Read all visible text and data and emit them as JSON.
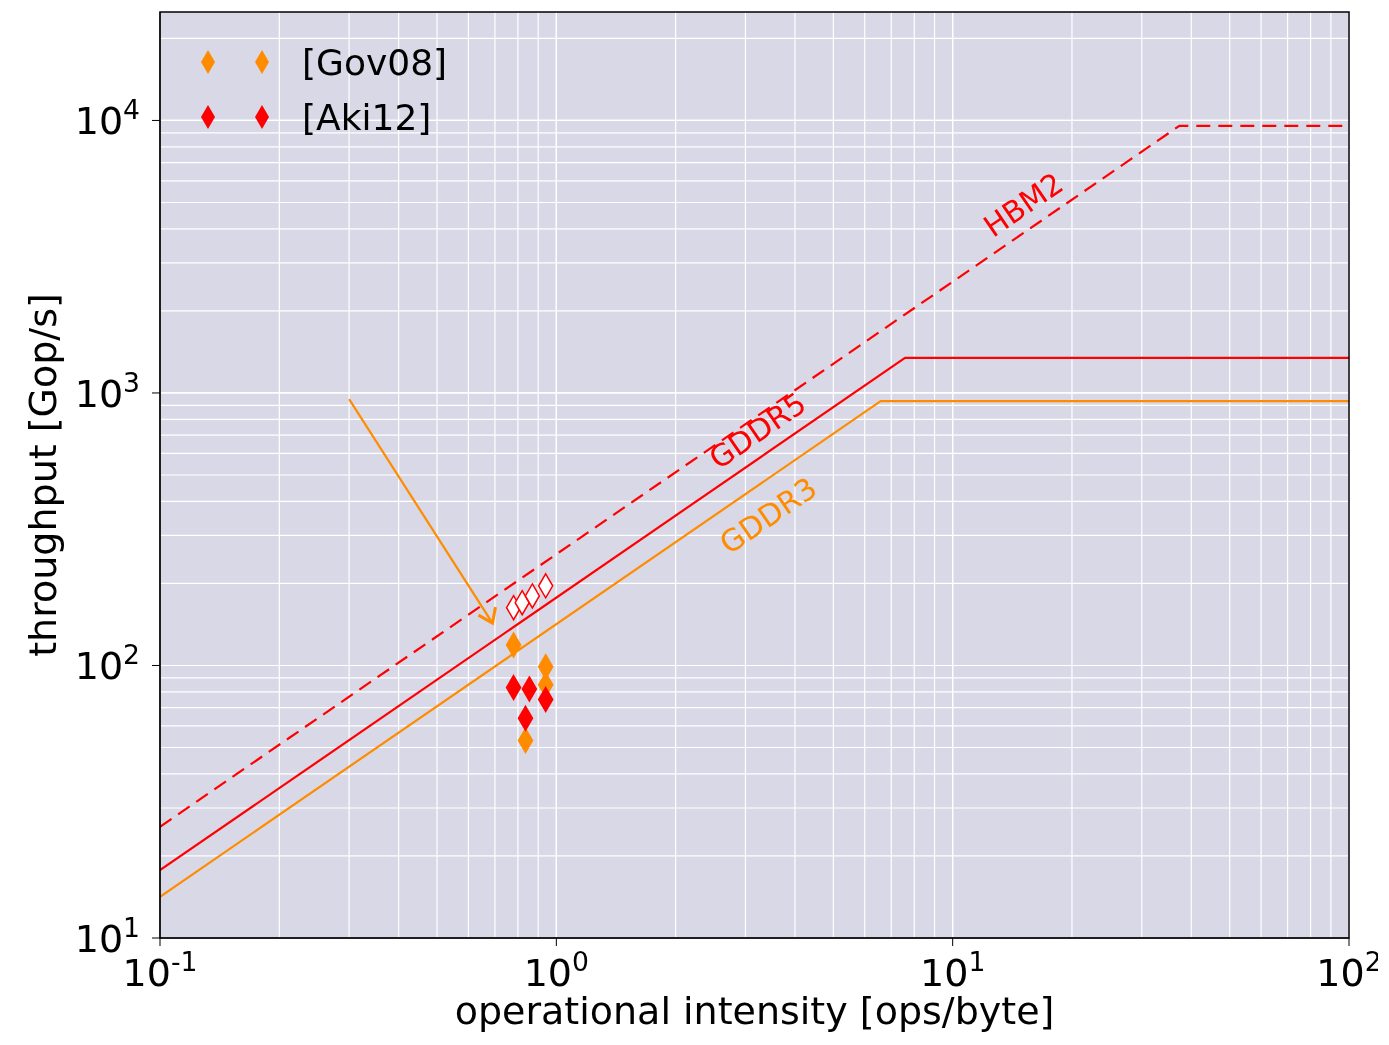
{
  "chart_data": {
    "type": "scatter",
    "xlabel": "operational intensity [ops/byte]",
    "ylabel": "throughput [Gop/s]",
    "log": "xy",
    "xlim": [
      0.1,
      100
    ],
    "ylim": [
      10,
      25000
    ],
    "xticks": [
      {
        "value": 0.1,
        "label": "10$^{-1}$"
      },
      {
        "value": 1,
        "label": "10$^{0}$"
      },
      {
        "value": 10,
        "label": "10$^{1}$"
      },
      {
        "value": 100,
        "label": "10$^{2}$"
      }
    ],
    "yticks": [
      {
        "value": 10,
        "label": "10$^{1}$"
      },
      {
        "value": 100,
        "label": "10$^{2}$"
      },
      {
        "value": 1000,
        "label": "10$^{3}$"
      },
      {
        "value": 10000,
        "label": "10$^{4}$"
      }
    ],
    "grid": true,
    "legend": "top left",
    "series": [
      {
        "type": "line",
        "color": "#ff8c00",
        "line_style": "solid",
        "x": [
          0.1,
          6.58,
          100
        ],
        "values": [
          14.17,
          933,
          933
        ]
      },
      {
        "type": "line",
        "color": "#ff0000",
        "line_style": "solid",
        "x": [
          0.1,
          7.58,
          100
        ],
        "values": [
          17.74,
          1345,
          1345
        ]
      },
      {
        "type": "line",
        "color": "#ff0000",
        "line_style": "dashed",
        "x": [
          0.1,
          37.3,
          100
        ],
        "values": [
          25.6,
          9550,
          9550
        ]
      },
      {
        "name": "[Gov08]",
        "color": "#ff8c00",
        "marker": "diamond",
        "x": [
          0.78,
          0.94,
          0.94,
          0.836
        ],
        "values": [
          119,
          99,
          85,
          53
        ]
      },
      {
        "name": "[Aki12]",
        "color": "#ff0000",
        "marker": "diamond",
        "x": [
          0.78,
          0.855,
          0.94,
          0.836
        ],
        "values": [
          83,
          82,
          75,
          64
        ]
      },
      {
        "color": "#ff0000",
        "marker": "diamond",
        "x": [
          0.78,
          0.82,
          0.87,
          0.94
        ],
        "values": [
          163,
          170,
          180,
          196
        ]
      }
    ],
    "annotations": [
      "GDDR3",
      "GDDR5",
      "HBM2"
    ]
  }
}
